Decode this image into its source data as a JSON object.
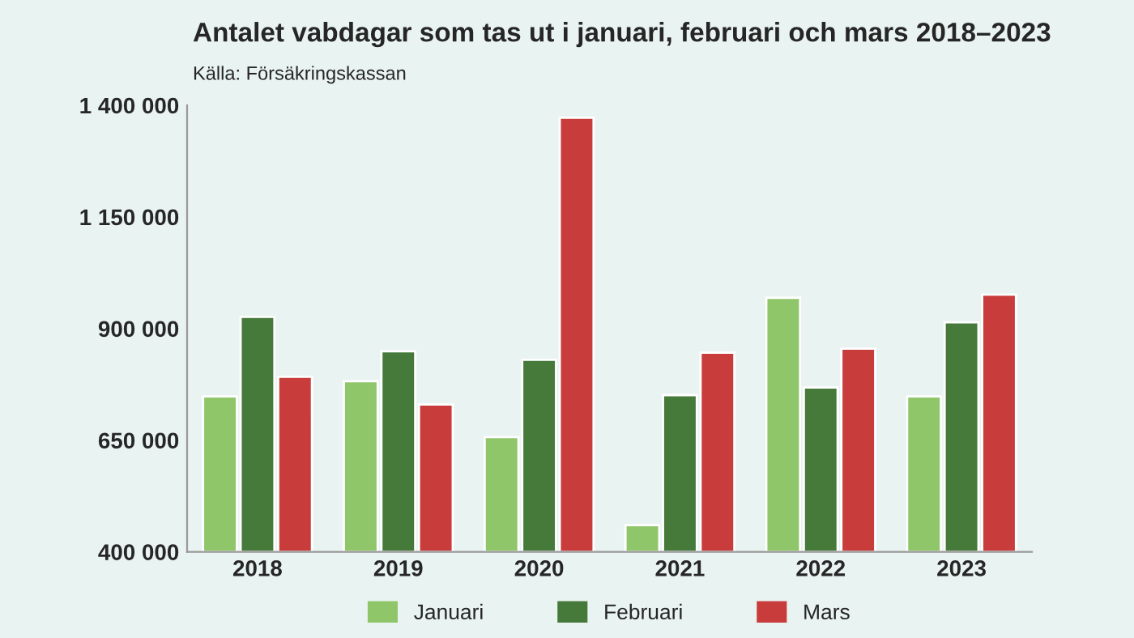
{
  "chart_data": {
    "type": "bar",
    "title": "Antalet vabdagar som tas ut i januari, februari och mars 2018–2023",
    "subtitle": "Källa: Försäkringskassan",
    "categories": [
      "2018",
      "2019",
      "2020",
      "2021",
      "2022",
      "2023"
    ],
    "series": [
      {
        "name": "Januari",
        "color": "#8fc66a",
        "values": [
          748000,
          782000,
          657000,
          460000,
          969000,
          748000
        ]
      },
      {
        "name": "Februari",
        "color": "#467a3a",
        "values": [
          926000,
          849000,
          830000,
          751000,
          768000,
          914000
        ]
      },
      {
        "name": "Mars",
        "color": "#c83c3c",
        "values": [
          792000,
          730000,
          1372000,
          846000,
          855000,
          976000
        ]
      }
    ],
    "ylim": [
      400000,
      1400000
    ],
    "yticks": [
      {
        "value": 400000,
        "label": "400 000"
      },
      {
        "value": 650000,
        "label": "650 000"
      },
      {
        "value": 900000,
        "label": "900 000"
      },
      {
        "value": 1150000,
        "label": "1 150 000"
      },
      {
        "value": 1400000,
        "label": "1 400 000"
      }
    ],
    "grid": false,
    "legend": "bottom"
  }
}
